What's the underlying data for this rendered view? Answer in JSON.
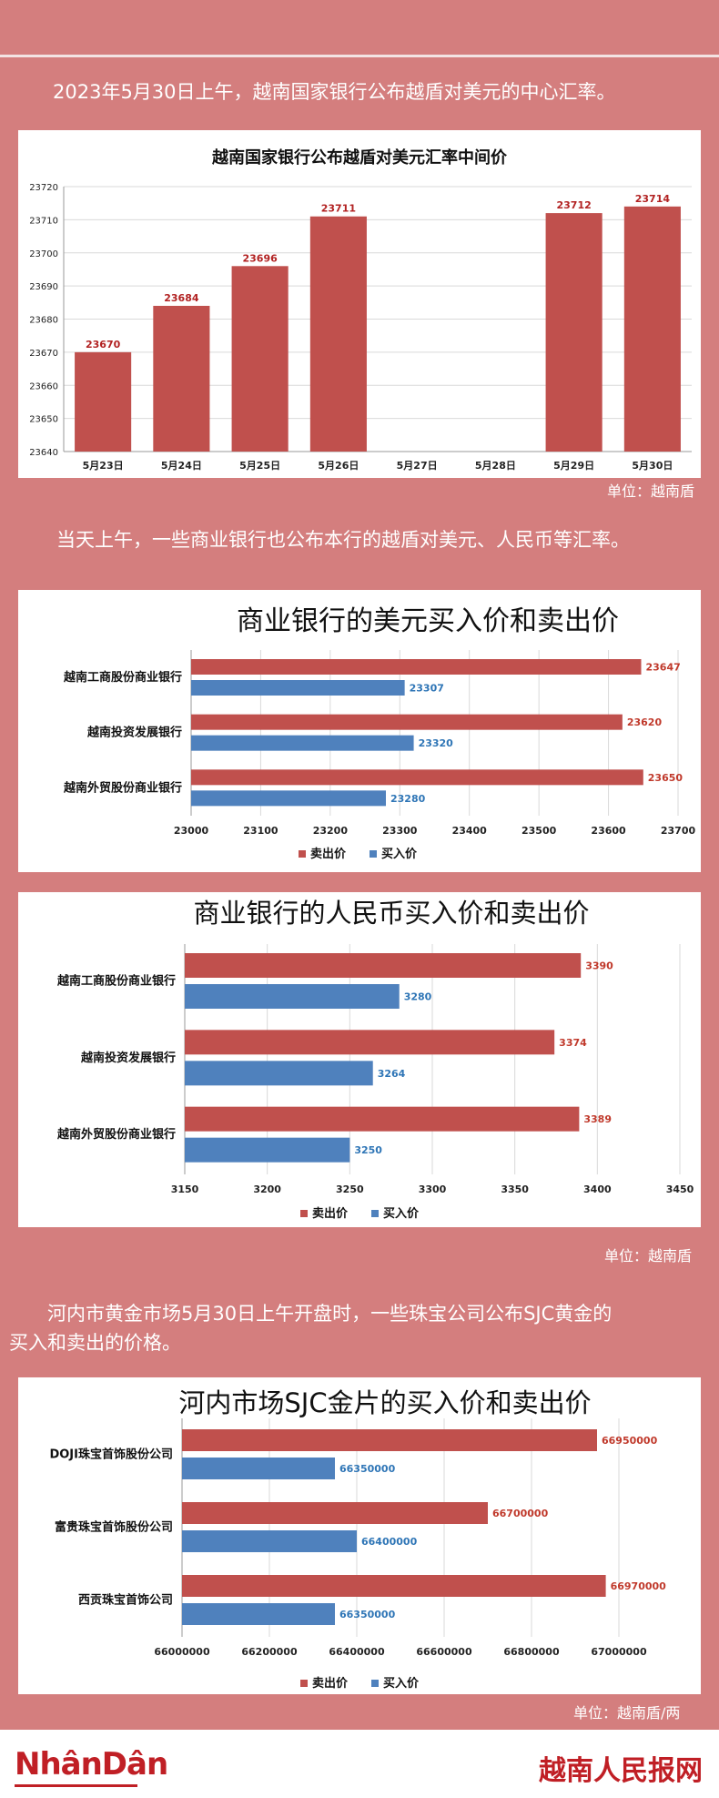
{
  "intro1": "2023年5月30日上午，越南国家银行公布越盾对美元的中心汇率。",
  "intro2": "当天上午，一些商业银行也公布本行的越盾对美元、人民币等汇率。",
  "intro3_line1": "河内市黄金市场5月30日上午开盘时，一些珠宝公司公布SJC黄金的",
  "intro3_line2": "买入和卖出的价格。",
  "unit1": "单位：越南盾",
  "unit2": "单位：越南盾",
  "unit3": "单位：越南盾/两",
  "footer": {
    "logo": "NhânDân",
    "site": "越南人民报网"
  },
  "colors": {
    "sell": "#c0504d",
    "buy": "#4f81bd",
    "background": "#d47e7e"
  },
  "chart_data": [
    {
      "type": "bar",
      "title": "越南国家银行公布越盾对美元汇率中间价",
      "categories": [
        "5月23日",
        "5月24日",
        "5月25日",
        "5月26日",
        "5月27日",
        "5月28日",
        "5月29日",
        "5月30日"
      ],
      "values": [
        23670,
        23684,
        23696,
        23711,
        null,
        null,
        23712,
        23714
      ],
      "ylim": [
        23640,
        23720
      ],
      "yticks": [
        23640,
        23650,
        23660,
        23670,
        23680,
        23690,
        23700,
        23710,
        23720
      ],
      "grid": true
    },
    {
      "type": "bar",
      "orientation": "horizontal",
      "title": "商业银行的美元买入价和卖出价",
      "categories": [
        "越南工商股份商业银行",
        "越南投资发展银行",
        "越南外贸股份商业银行"
      ],
      "series": [
        {
          "name": "卖出价",
          "values": [
            23647,
            23620,
            23650
          ]
        },
        {
          "name": "买入价",
          "values": [
            23307,
            23320,
            23280
          ]
        }
      ],
      "xlim": [
        23000,
        23700
      ],
      "xticks": [
        23000,
        23100,
        23200,
        23300,
        23400,
        23500,
        23600,
        23700
      ],
      "legend": "bottom",
      "grid": true
    },
    {
      "type": "bar",
      "orientation": "horizontal",
      "title": "商业银行的人民币买入价和卖出价",
      "categories": [
        "越南工商股份商业银行",
        "越南投资发展银行",
        "越南外贸股份商业银行"
      ],
      "series": [
        {
          "name": "卖出价",
          "values": [
            3390,
            3374,
            3389
          ]
        },
        {
          "name": "买入价",
          "values": [
            3280,
            3264,
            3250
          ]
        }
      ],
      "xlim": [
        3150,
        3450
      ],
      "xticks": [
        3150,
        3200,
        3250,
        3300,
        3350,
        3400,
        3450
      ],
      "legend": "bottom",
      "grid": true
    },
    {
      "type": "bar",
      "orientation": "horizontal",
      "title": "河内市场SJC金片的买入价和卖出价",
      "categories": [
        "DOJI珠宝首饰股份公司",
        "富贵珠宝首饰股份公司",
        "西贡珠宝首饰公司"
      ],
      "series": [
        {
          "name": "卖出价",
          "values": [
            66950000,
            66700000,
            66970000
          ]
        },
        {
          "name": "买入价",
          "values": [
            66350000,
            66400000,
            66350000
          ]
        }
      ],
      "xlim": [
        66000000,
        67000000
      ],
      "xticks": [
        66000000,
        66200000,
        66400000,
        66600000,
        66800000,
        67000000
      ],
      "legend": "bottom",
      "grid": true
    }
  ]
}
